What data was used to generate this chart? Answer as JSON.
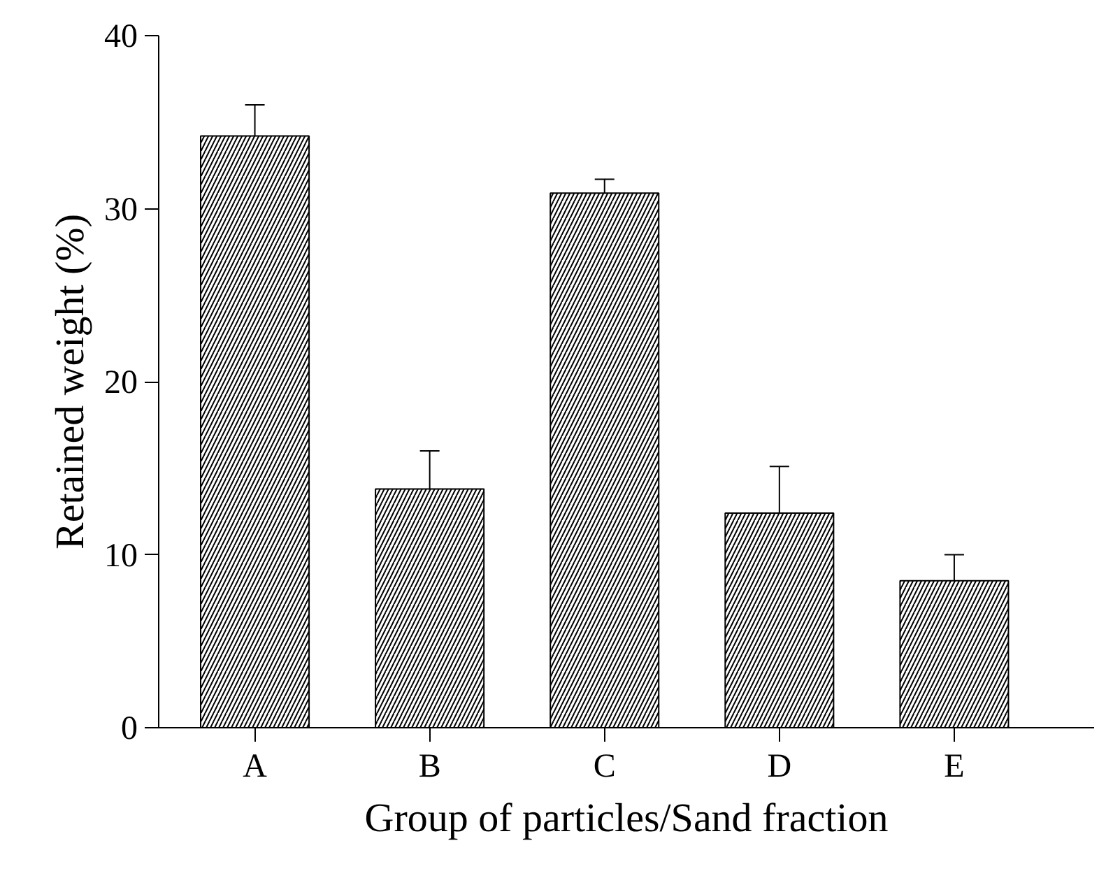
{
  "chart_data": {
    "type": "bar",
    "xlabel": "Group of particles/Sand fraction",
    "ylabel": "Retained weight (%)",
    "categories": [
      "A",
      "B",
      "C",
      "D",
      "E"
    ],
    "values": [
      34.2,
      13.8,
      30.9,
      12.4,
      8.5
    ],
    "errors": [
      1.8,
      2.2,
      0.8,
      2.7,
      1.5
    ],
    "color": "#000000",
    "ylim": [
      0,
      40
    ],
    "yticks": [
      0,
      10,
      20,
      30,
      40
    ],
    "grid": false
  }
}
